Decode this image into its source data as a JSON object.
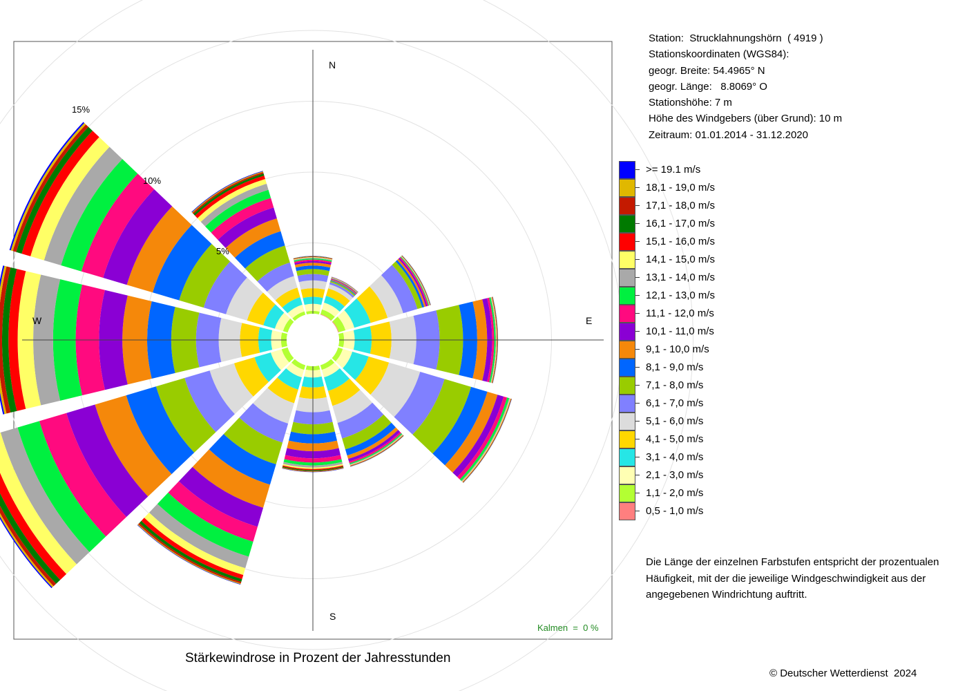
{
  "station_info": {
    "station": "Station:  Strucklahnungshörn  ( 4919 )",
    "coords_title": "Stationskoordinaten (WGS84):",
    "latitude": "geogr. Breite: 54.4965° N",
    "longitude": "geogr. Länge:   8.8069° O",
    "elevation": "Stationshöhe: 7 m",
    "sensor_height": "Höhe des Windgebers (über Grund): 10 m",
    "period": "Zeitraum: 01.01.2014 - 31.12.2020"
  },
  "note": "Die Länge der einzelnen Farbstufen entspricht der prozentualen Häufigkeit, mit der die jeweilige Windgeschwindigkeit aus der angegebenen Windrichtung auftritt.",
  "copyright": "© Deutscher Wetterdienst  2024",
  "chart_data": {
    "type": "polar-stacked-bar",
    "title": "Stärkewindrose in Prozent der Jahresstunden",
    "calm_label": "Kalmen  =  0 %",
    "calm_color": "#228B22",
    "directions": [
      0,
      30,
      60,
      90,
      120,
      150,
      180,
      210,
      240,
      270,
      300,
      330
    ],
    "direction_labels": {
      "N": "N",
      "E": "E",
      "S": "S",
      "W": "W"
    },
    "ring_labels": [
      "5%",
      "10%",
      "15%"
    ],
    "ring_values": [
      5,
      10,
      15,
      20,
      25
    ],
    "speed_classes": [
      {
        "label": "0,5 - 1,0 m/s",
        "color": "#FF7F7F"
      },
      {
        "label": "1,1 - 2,0 m/s",
        "color": "#B3FF33"
      },
      {
        "label": "2,1 - 3,0 m/s",
        "color": "#FFFFB3"
      },
      {
        "label": "3,1 - 4,0 m/s",
        "color": "#26E6E6"
      },
      {
        "label": "4,1 - 5,0 m/s",
        "color": "#FFD700"
      },
      {
        "label": "5,1 - 6,0 m/s",
        "color": "#DCDCDC"
      },
      {
        "label": "6,1 - 7,0 m/s",
        "color": "#8080FF"
      },
      {
        "label": "7,1 - 8,0 m/s",
        "color": "#99CC00"
      },
      {
        "label": "8,1 - 9,0 m/s",
        "color": "#0066FF"
      },
      {
        "label": "9,1 - 10,0 m/s",
        "color": "#F5880A"
      },
      {
        "label": "10,1 - 11,0 m/s",
        "color": "#8A00D4"
      },
      {
        "label": "11,1 - 12,0 m/s",
        "color": "#FF0A7F"
      },
      {
        "label": "12,1 - 13,0 m/s",
        "color": "#00F040"
      },
      {
        "label": "13,1 - 14,0 m/s",
        "color": "#A9A9A9"
      },
      {
        "label": "14,1 - 15,0 m/s",
        "color": "#FFFF66"
      },
      {
        "label": "15,1 - 16,0 m/s",
        "color": "#FF0000"
      },
      {
        "label": "16,1 - 17,0 m/s",
        "color": "#007A00"
      },
      {
        "label": "17,1 - 18,0 m/s",
        "color": "#C41A00"
      },
      {
        "label": "18,1 - 19,0 m/s",
        "color": "#E0B800"
      },
      {
        "label": ">= 19.1 m/s",
        "color": "#0000FF"
      }
    ],
    "sectors": [
      {
        "dir": 0,
        "values": [
          0.0,
          0.2,
          0.5,
          0.5,
          0.6,
          0.55,
          0.45,
          0.35,
          0.25,
          0.2,
          0.12,
          0.1,
          0.08,
          0.06,
          0.04,
          0.03,
          0.02,
          0.01,
          0.01,
          0.01
        ]
      },
      {
        "dir": 30,
        "values": [
          0.05,
          0.35,
          0.5,
          0.5,
          0.55,
          0.3,
          0.15,
          0.1,
          0.06,
          0.06,
          0.04,
          0.03,
          0.02,
          0.02,
          0.02,
          0.01,
          0.01,
          0.01,
          0.01,
          0.01
        ]
      },
      {
        "dir": 60,
        "values": [
          0.05,
          0.5,
          0.65,
          1.2,
          1.25,
          1.15,
          1.05,
          0.35,
          0.15,
          0.12,
          0.1,
          0.08,
          0.05,
          0.04,
          0.03,
          0.02,
          0.02,
          0.01,
          0.01,
          0.01
        ]
      },
      {
        "dir": 90,
        "values": [
          0.0,
          0.35,
          0.75,
          1.2,
          1.4,
          1.75,
          1.65,
          1.65,
          1.0,
          0.7,
          0.35,
          0.15,
          0.1,
          0.05,
          0.04,
          0.03,
          0.02,
          0.01,
          0.01,
          0.01
        ]
      },
      {
        "dir": 120,
        "values": [
          0.0,
          0.35,
          0.7,
          1.2,
          1.5,
          2.3,
          1.8,
          1.95,
          1.2,
          0.75,
          0.45,
          0.25,
          0.15,
          0.07,
          0.05,
          0.03,
          0.02,
          0.01,
          0.01,
          0.01
        ]
      },
      {
        "dir": 150,
        "values": [
          0.0,
          0.35,
          0.55,
          1.0,
          1.1,
          1.25,
          1.15,
          0.8,
          0.45,
          0.25,
          0.2,
          0.12,
          0.08,
          0.06,
          0.04,
          0.03,
          0.02,
          0.01,
          0.01,
          0.01
        ]
      },
      {
        "dir": 180,
        "values": [
          0.0,
          0.3,
          0.5,
          0.7,
          0.8,
          0.95,
          0.85,
          0.7,
          0.65,
          0.55,
          0.5,
          0.3,
          0.2,
          0.15,
          0.1,
          0.08,
          0.06,
          0.04,
          0.03,
          0.02
        ]
      },
      {
        "dir": 210,
        "values": [
          0.0,
          0.35,
          0.55,
          0.9,
          1.0,
          1.5,
          1.4,
          1.6,
          1.5,
          1.7,
          1.4,
          1.1,
          1.1,
          0.85,
          0.5,
          0.3,
          0.2,
          0.12,
          0.06,
          0.03
        ]
      },
      {
        "dir": 240,
        "values": [
          0.0,
          0.45,
          0.8,
          1.2,
          1.5,
          1.8,
          1.85,
          2.1,
          2.2,
          2.3,
          2.1,
          2.0,
          1.6,
          1.25,
          1.0,
          0.6,
          0.4,
          0.25,
          0.12,
          0.08
        ]
      },
      {
        "dir": 270,
        "values": [
          0.0,
          0.4,
          0.7,
          0.9,
          1.3,
          1.5,
          1.6,
          1.75,
          1.7,
          1.75,
          1.65,
          1.65,
          1.6,
          1.4,
          1.1,
          0.65,
          0.45,
          0.3,
          0.15,
          0.1
        ]
      },
      {
        "dir": 300,
        "values": [
          0.0,
          0.35,
          0.6,
          0.85,
          1.2,
          1.55,
          1.65,
          1.8,
          1.95,
          1.9,
          1.75,
          1.6,
          1.5,
          1.25,
          1.0,
          0.65,
          0.4,
          0.25,
          0.15,
          0.1
        ]
      },
      {
        "dir": 330,
        "values": [
          0.0,
          0.25,
          0.5,
          0.55,
          0.7,
          0.85,
          1.0,
          1.25,
          1.05,
          0.95,
          0.8,
          0.7,
          0.6,
          0.45,
          0.35,
          0.25,
          0.15,
          0.1,
          0.06,
          0.04
        ]
      }
    ]
  }
}
